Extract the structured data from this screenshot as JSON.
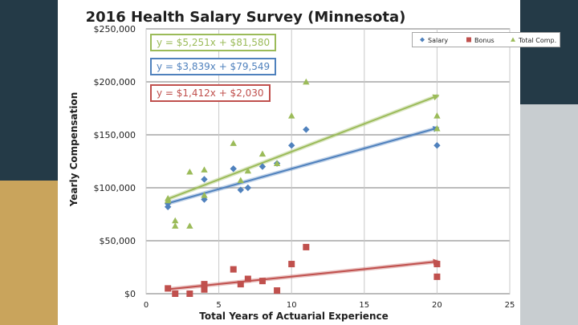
{
  "chart_data": {
    "type": "scatter",
    "title": "2016 Health Salary Survey (Minnesota)",
    "xlabel": "Total Years of Actuarial Experience",
    "ylabel": "Yearly Compensation",
    "xlim": [
      0,
      25
    ],
    "ylim": [
      0,
      250000
    ],
    "x_ticks": [
      0,
      5,
      10,
      15,
      20,
      25
    ],
    "x_tick_labels": [
      "0",
      "5",
      "10",
      "15",
      "20",
      "25"
    ],
    "y_ticks": [
      0,
      50000,
      100000,
      150000,
      200000,
      250000
    ],
    "y_tick_labels": [
      "$0",
      "$50,000",
      "$100,000",
      "$150,000",
      "$200,000",
      "$250,000"
    ],
    "grid": true,
    "legend_position": "top-right",
    "series": [
      {
        "name": "Salary",
        "color": "#4f81bd",
        "marker": "diamond",
        "points": [
          [
            1.5,
            82000
          ],
          [
            1.5,
            85000
          ],
          [
            4,
            108000
          ],
          [
            4,
            89000
          ],
          [
            6,
            118000
          ],
          [
            6.5,
            98000
          ],
          [
            7,
            100000
          ],
          [
            8,
            120000
          ],
          [
            9,
            123000
          ],
          [
            10,
            140000
          ],
          [
            11,
            155000
          ],
          [
            20,
            140000
          ]
        ]
      },
      {
        "name": "Bonus",
        "color": "#c0504d",
        "marker": "square",
        "points": [
          [
            1.5,
            5000
          ],
          [
            2,
            0
          ],
          [
            3,
            0
          ],
          [
            4,
            9000
          ],
          [
            4,
            4000
          ],
          [
            6,
            23000
          ],
          [
            6.5,
            9000
          ],
          [
            7,
            14000
          ],
          [
            8,
            12000
          ],
          [
            9,
            3000
          ],
          [
            10,
            28000
          ],
          [
            11,
            44000
          ],
          [
            20,
            28000
          ],
          [
            20,
            16000
          ]
        ]
      },
      {
        "name": "Total Comp.",
        "color": "#9bbb59",
        "marker": "triangle",
        "points": [
          [
            1.5,
            88000
          ],
          [
            1.5,
            90000
          ],
          [
            2,
            69000
          ],
          [
            2,
            64000
          ],
          [
            3,
            115000
          ],
          [
            3,
            64000
          ],
          [
            4,
            117000
          ],
          [
            4,
            93000
          ],
          [
            6,
            142000
          ],
          [
            6.5,
            107000
          ],
          [
            7,
            116000
          ],
          [
            8,
            132000
          ],
          [
            9,
            123000
          ],
          [
            10,
            168000
          ],
          [
            11,
            200000
          ],
          [
            20,
            168000
          ],
          [
            20,
            156000
          ]
        ]
      }
    ],
    "trendlines": [
      {
        "series": "Total Comp.",
        "slope": 5251,
        "intercept": 81580,
        "x_range": [
          1.5,
          20
        ],
        "equation": "y = $5,251x + $81,580",
        "color": "#9bbb59"
      },
      {
        "series": "Salary",
        "slope": 3839,
        "intercept": 79549,
        "x_range": [
          1.5,
          20
        ],
        "equation": "y = $3,839x + $79,549",
        "color": "#4f81bd"
      },
      {
        "series": "Bonus",
        "slope": 1412,
        "intercept": 2030,
        "x_range": [
          1.5,
          20
        ],
        "equation": "y = $1,412x + $2,030",
        "color": "#c0504d"
      }
    ]
  }
}
